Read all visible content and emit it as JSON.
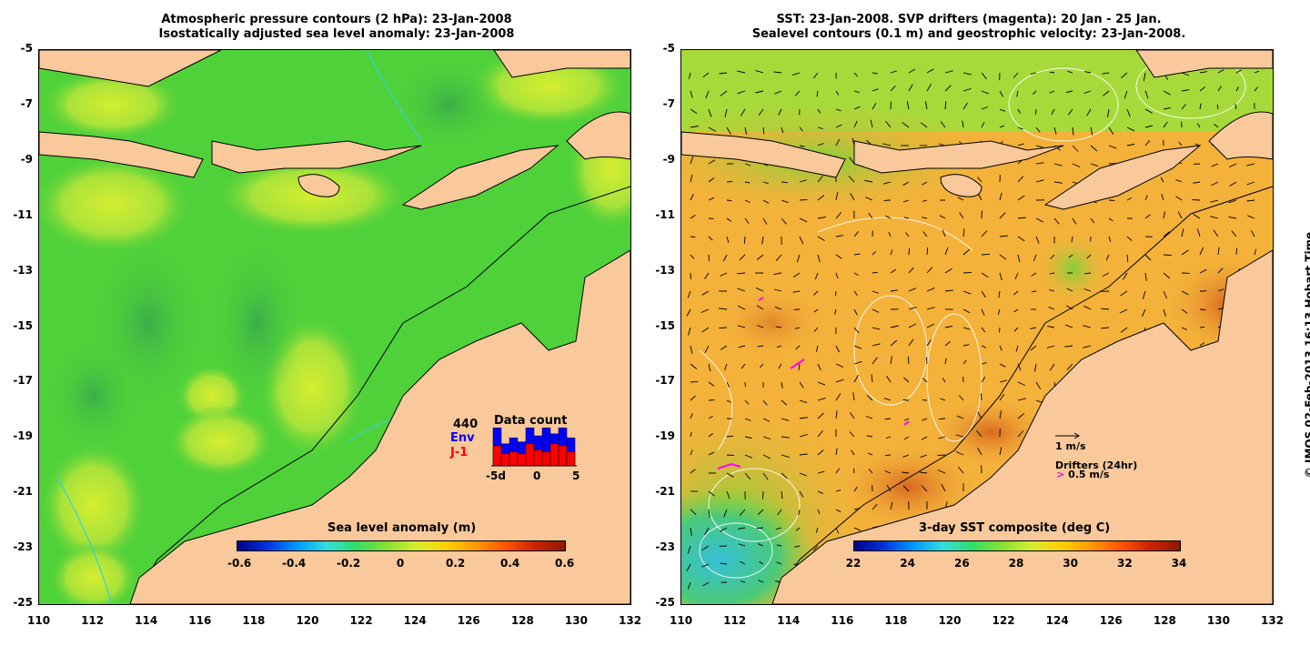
{
  "left": {
    "title_line1": "Atmospheric pressure contours (2 hPa): 23-Jan-2008",
    "title_line2": "Isostatically adjusted sea level anomaly: 23-Jan-2008",
    "colorbar": {
      "title": "Sea level anomaly (m)",
      "ticks": [
        "-0.6",
        "-0.4",
        "-0.2",
        "0",
        "0.2",
        "0.4",
        "0.6"
      ]
    },
    "data_count": {
      "title": "Data count",
      "total": "440",
      "env_label": "Env",
      "j1_label": "J-1",
      "x_ticks": [
        "-5d",
        "0",
        "5"
      ],
      "env_color": "#0000ff",
      "j1_color": "#ff0000",
      "env_values": [
        0.95,
        0.55,
        0.7,
        0.6,
        0.95,
        0.75,
        0.95,
        0.8,
        0.95,
        0.7
      ],
      "j1_values": [
        0.5,
        0.3,
        0.35,
        0.3,
        0.55,
        0.4,
        0.35,
        0.55,
        0.5,
        0.35
      ]
    }
  },
  "right": {
    "title_line1": "SST: 23-Jan-2008. SVP drifters (magenta): 20 Jan - 25 Jan.",
    "title_line2": "Sealevel contours (0.1 m) and geostrophic velocity: 23-Jan-2008.",
    "colorbar": {
      "title": "3-day SST composite (deg C)",
      "ticks": [
        "22",
        "24",
        "26",
        "28",
        "30",
        "32",
        "34"
      ]
    },
    "velocity_key": "1 m/s",
    "drifters_label": "Drifters (24hr)",
    "drifter_speed": "0.5 m/s"
  },
  "axes": {
    "lat_ticks": [
      "-5",
      "-7",
      "-9",
      "-11",
      "-13",
      "-15",
      "-17",
      "-19",
      "-21",
      "-23",
      "-25"
    ],
    "lon_ticks": [
      "110",
      "112",
      "114",
      "116",
      "118",
      "120",
      "122",
      "124",
      "126",
      "128",
      "130",
      "132"
    ]
  },
  "credit": "© IMOS 02-Feb-2013 16:13 Hobart Time",
  "colors": {
    "land": "#f9c89b",
    "sla_ocean": "#4fd13a",
    "sst_ocean": "#f4b23a",
    "magenta": "#ff00ff"
  }
}
